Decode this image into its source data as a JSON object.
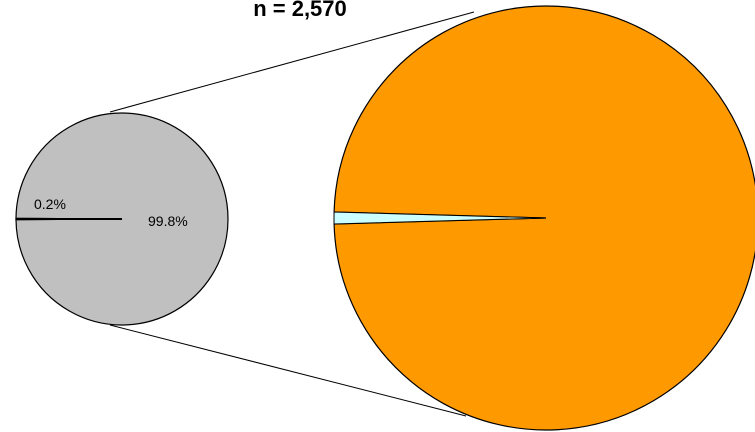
{
  "chart_data": {
    "type": "pie",
    "title": "n = 2,570",
    "primary": {
      "slices": [
        {
          "label": "0.2%",
          "value": 0.2
        },
        {
          "label": "99.8%",
          "value": 99.8
        }
      ],
      "color": "#C0C0C0"
    },
    "secondary": {
      "slices": [
        {
          "value": 99.1,
          "color": "#FF9900"
        },
        {
          "value": 0.9,
          "color": "#CCFFFF"
        }
      ]
    },
    "legend": "none",
    "grid": false
  }
}
